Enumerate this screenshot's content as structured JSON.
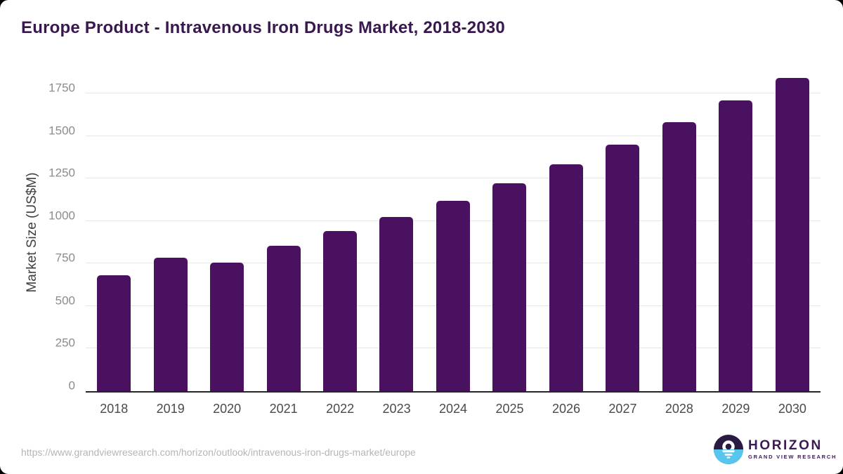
{
  "page": {
    "title": "Europe Product - Intravenous Iron Drugs Market, 2018-2030",
    "source_url": "https://www.grandviewresearch.com/horizon/outlook/intravenous-iron-drugs-market/europe"
  },
  "logo": {
    "name": "HORIZON",
    "tagline": "GRAND VIEW RESEARCH"
  },
  "colors": {
    "bar": "#4a1160",
    "title_text": "#38184e",
    "gridline": "#e6e6e6",
    "axis_line": "#262626",
    "y_tick_text": "#8c8c8c",
    "x_label_text": "#4a4a4a",
    "url_text": "#b5b5b5",
    "logo_purple": "#2b1b43",
    "logo_blue": "#56c6ef"
  },
  "chart_data": {
    "type": "bar",
    "title": "Europe Product - Intravenous Iron Drugs Market, 2018-2030",
    "categories": [
      "2018",
      "2019",
      "2020",
      "2021",
      "2022",
      "2023",
      "2024",
      "2025",
      "2026",
      "2027",
      "2028",
      "2029",
      "2030"
    ],
    "values": [
      680,
      785,
      757,
      855,
      940,
      1025,
      1120,
      1220,
      1335,
      1450,
      1580,
      1710,
      1840
    ],
    "xlabel": "",
    "ylabel": "Market Size (US$M)",
    "yticks": [
      0,
      250,
      500,
      750,
      1000,
      1250,
      1500,
      1750
    ],
    "ylim": [
      0,
      1865
    ],
    "grid": "horizontal-only",
    "legend": "none",
    "bar_color": "#4a1160"
  }
}
